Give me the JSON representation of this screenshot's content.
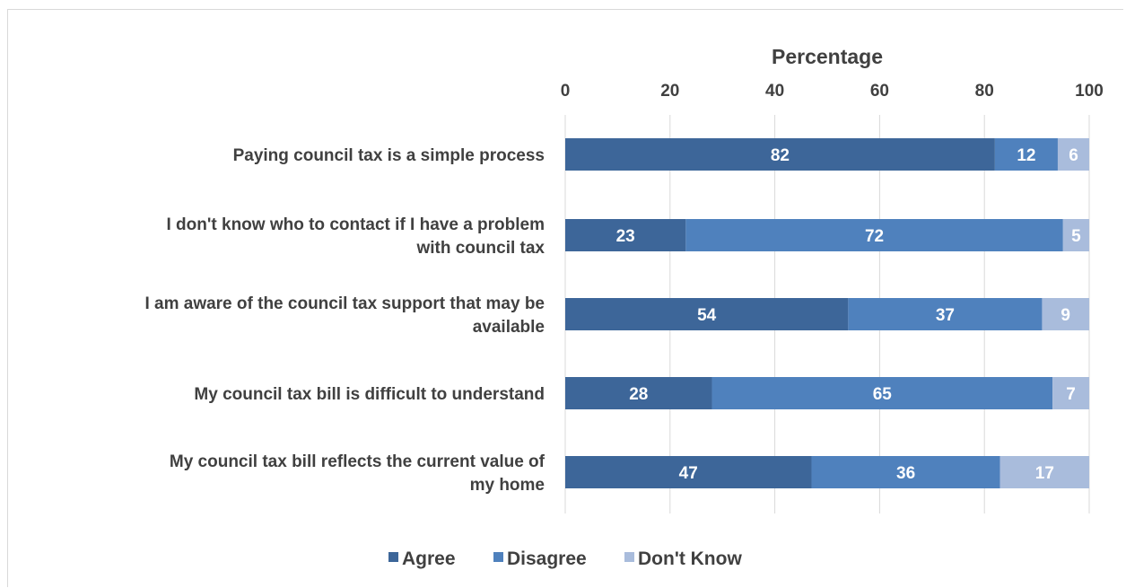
{
  "chart_data": {
    "type": "bar",
    "orientation": "horizontal",
    "stacked": true,
    "xlabel": "Percentage",
    "xlim": [
      0,
      100
    ],
    "x_ticks": [
      "0",
      "20",
      "40",
      "60",
      "80",
      "100"
    ],
    "x_axis_position": "top",
    "grid": true,
    "legend_position": "bottom",
    "categories": [
      [
        "Paying council tax is a simple process"
      ],
      [
        "I don't know who to contact if I have a problem",
        "with council tax"
      ],
      [
        "I am aware of the council tax support that may be",
        "available"
      ],
      [
        "My council tax bill is difficult to understand"
      ],
      [
        "My council tax bill reflects the current value of",
        "my home"
      ]
    ],
    "series": [
      {
        "name": "Agree",
        "color": "#3d6699",
        "values": [
          82,
          23,
          54,
          28,
          47
        ]
      },
      {
        "name": "Disagree",
        "color": "#4f81bd",
        "values": [
          12,
          72,
          37,
          65,
          36
        ]
      },
      {
        "name": "Don't Know",
        "color": "#a9bcdc",
        "values": [
          6,
          5,
          9,
          7,
          17
        ]
      }
    ]
  }
}
